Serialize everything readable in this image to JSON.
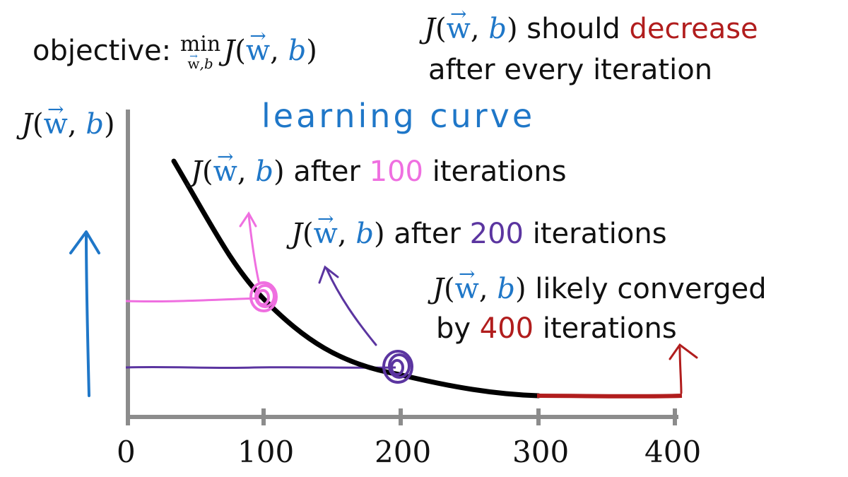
{
  "objective": {
    "label": "objective:",
    "min_op": "min",
    "min_sub_w": "w",
    "min_sub_b": ",b",
    "fn": "J",
    "arg_w": "w",
    "arg_b": "b"
  },
  "should_note": {
    "fn": "J",
    "arg_w": "w",
    "arg_b": "b",
    "text": "should",
    "highlight": "decrease",
    "line2": "after every iteration"
  },
  "axis_y_label": {
    "fn": "J",
    "arg_w": "w",
    "arg_b": "b"
  },
  "title": "learning curve",
  "notes": [
    {
      "fn": "J",
      "arg_w": "w",
      "arg_b": "b",
      "pre": "after",
      "num": "100",
      "post": "iterations"
    },
    {
      "fn": "J",
      "arg_w": "w",
      "arg_b": "b",
      "pre": "after",
      "num": "200",
      "post": "iterations"
    },
    {
      "fn": "J",
      "arg_w": "w",
      "arg_b": "b",
      "pre": "likely converged",
      "line2_pre": "by",
      "num": "400",
      "post": "iterations"
    }
  ],
  "x_ticks": [
    "0",
    "100",
    "200",
    "300",
    "400"
  ],
  "colors": {
    "blue": "#1f77c8",
    "pink": "#ef6fe0",
    "purple": "#5b35a0",
    "red": "#b11d1d",
    "axis": "#8c8c8c",
    "curve": "#000000"
  }
}
